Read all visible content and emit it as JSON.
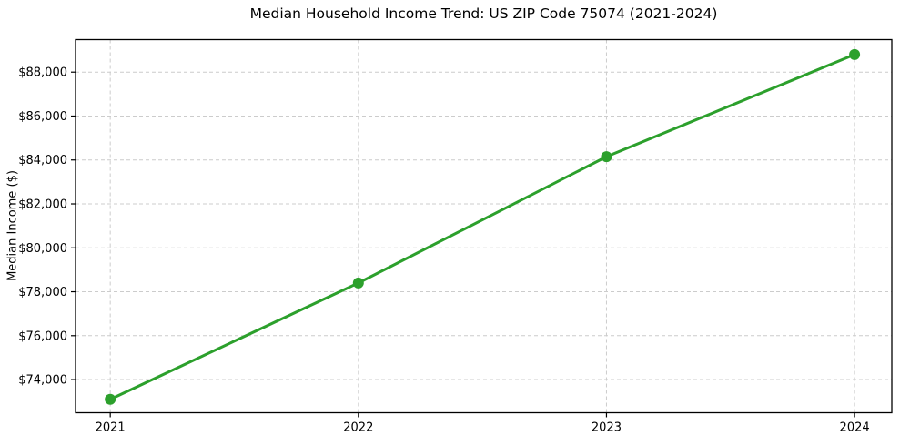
{
  "chart_data": {
    "type": "line",
    "title": "Median Household Income Trend: US ZIP Code 75074 (2021-2024)",
    "xlabel": "",
    "ylabel": "Median Income ($)",
    "x": [
      2021,
      2022,
      2023,
      2024
    ],
    "x_tick_labels": [
      "2021",
      "2022",
      "2023",
      "2024"
    ],
    "values": [
      73100,
      78400,
      84150,
      88800
    ],
    "y_ticks": [
      74000,
      76000,
      78000,
      80000,
      82000,
      84000,
      86000,
      88000
    ],
    "y_tick_labels": [
      "$74,000",
      "$76,000",
      "$78,000",
      "$80,000",
      "$82,000",
      "$84,000",
      "$86,000",
      "$88,000"
    ],
    "xlim": [
      2020.86,
      2024.15
    ],
    "ylim": [
      72490,
      89480
    ],
    "grid": true,
    "grid_style": "dashed",
    "grid_color": "#cccccc",
    "line_color": "#2ca02c",
    "marker": "circle",
    "marker_radius": 6,
    "line_width": 3,
    "spine_color": "#000000",
    "legend": false
  }
}
